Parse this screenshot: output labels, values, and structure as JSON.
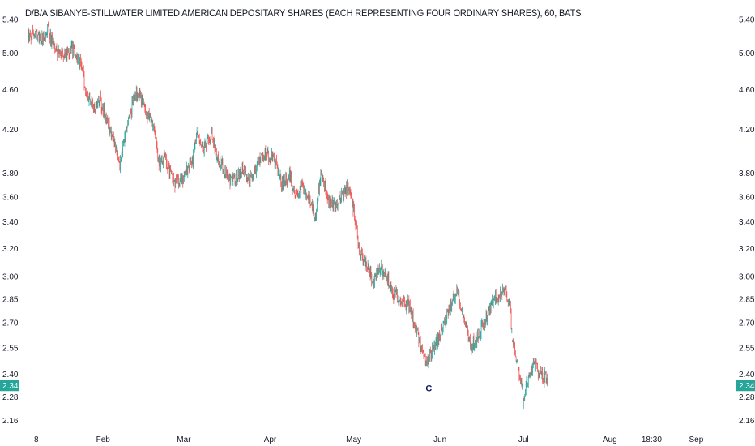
{
  "title": "D/B/A SIBANYE-STILLWATER LIMITED AMERICAN DEPOSITARY SHARES (EACH REPRESENTING FOUR ORDINARY SHARES), 60, BATS",
  "colors": {
    "up": "#26a69a",
    "down": "#ef5350",
    "last_price_tag": "#26a69a",
    "marker_text": "#131760",
    "axis_text": "#131722"
  },
  "chart_data": {
    "type": "candlestick",
    "title": "D/B/A SIBANYE-STILLWATER LIMITED AMERICAN DEPOSITARY SHARES (EACH REPRESENTING FOUR ORDINARY SHARES), 60, BATS",
    "y_scale": "log",
    "ylim": [
      2.13,
      5.48
    ],
    "y_ticks": [
      "5.40",
      "5.00",
      "4.60",
      "4.20",
      "3.80",
      "3.60",
      "3.40",
      "3.20",
      "3.00",
      "2.85",
      "2.70",
      "2.55",
      "2.40",
      "2.28",
      "2.16"
    ],
    "x_ticks": [
      {
        "date": "2024-01-08",
        "label": "8"
      },
      {
        "date": "2024-02-01",
        "label": "Feb"
      },
      {
        "date": "2024-03-01",
        "label": "Mar"
      },
      {
        "date": "2024-04-01",
        "label": "Apr"
      },
      {
        "date": "2024-05-01",
        "label": "May"
      },
      {
        "date": "2024-06-01",
        "label": "Jun"
      },
      {
        "date": "2024-07-01",
        "label": "Jul"
      },
      {
        "date": "2024-08-01",
        "label": "Aug"
      },
      {
        "date": "2024-08-16",
        "label": "18:30"
      },
      {
        "date": "2024-09-01",
        "label": "Sep"
      }
    ],
    "xlim": [
      "2024-01-04",
      "2024-09-07"
    ],
    "last_price": "2.34",
    "marker": {
      "label": "C",
      "date": "2024-05-28",
      "price": 2.37
    },
    "price_path": [
      {
        "date": "2024-01-05",
        "close": 5.2
      },
      {
        "date": "2024-01-08",
        "close": 5.22
      },
      {
        "date": "2024-01-10",
        "close": 5.15
      },
      {
        "date": "2024-01-12",
        "close": 5.28
      },
      {
        "date": "2024-01-15",
        "close": 5.02
      },
      {
        "date": "2024-01-18",
        "close": 4.95
      },
      {
        "date": "2024-01-21",
        "close": 5.04
      },
      {
        "date": "2024-01-24",
        "close": 4.88
      },
      {
        "date": "2024-01-26",
        "close": 4.55
      },
      {
        "date": "2024-01-29",
        "close": 4.4
      },
      {
        "date": "2024-01-31",
        "close": 4.5
      },
      {
        "date": "2024-02-02",
        "close": 4.3
      },
      {
        "date": "2024-02-05",
        "close": 4.1
      },
      {
        "date": "2024-02-07",
        "close": 3.88
      },
      {
        "date": "2024-02-09",
        "close": 4.15
      },
      {
        "date": "2024-02-12",
        "close": 4.5
      },
      {
        "date": "2024-02-14",
        "close": 4.58
      },
      {
        "date": "2024-02-16",
        "close": 4.4
      },
      {
        "date": "2024-02-19",
        "close": 4.25
      },
      {
        "date": "2024-02-21",
        "close": 3.88
      },
      {
        "date": "2024-02-23",
        "close": 3.95
      },
      {
        "date": "2024-02-26",
        "close": 3.75
      },
      {
        "date": "2024-02-28",
        "close": 3.7
      },
      {
        "date": "2024-03-01",
        "close": 3.78
      },
      {
        "date": "2024-03-04",
        "close": 3.9
      },
      {
        "date": "2024-03-06",
        "close": 4.18
      },
      {
        "date": "2024-03-08",
        "close": 4.02
      },
      {
        "date": "2024-03-11",
        "close": 4.15
      },
      {
        "date": "2024-03-13",
        "close": 3.95
      },
      {
        "date": "2024-03-15",
        "close": 3.85
      },
      {
        "date": "2024-03-18",
        "close": 3.72
      },
      {
        "date": "2024-03-20",
        "close": 3.78
      },
      {
        "date": "2024-03-22",
        "close": 3.82
      },
      {
        "date": "2024-03-25",
        "close": 3.75
      },
      {
        "date": "2024-03-27",
        "close": 3.85
      },
      {
        "date": "2024-03-29",
        "close": 3.98
      },
      {
        "date": "2024-04-01",
        "close": 3.95
      },
      {
        "date": "2024-04-03",
        "close": 3.88
      },
      {
        "date": "2024-04-05",
        "close": 3.72
      },
      {
        "date": "2024-04-08",
        "close": 3.78
      },
      {
        "date": "2024-04-10",
        "close": 3.6
      },
      {
        "date": "2024-04-12",
        "close": 3.7
      },
      {
        "date": "2024-04-15",
        "close": 3.62
      },
      {
        "date": "2024-04-17",
        "close": 3.42
      },
      {
        "date": "2024-04-19",
        "close": 3.78
      },
      {
        "date": "2024-04-22",
        "close": 3.58
      },
      {
        "date": "2024-04-24",
        "close": 3.52
      },
      {
        "date": "2024-04-26",
        "close": 3.58
      },
      {
        "date": "2024-04-29",
        "close": 3.68
      },
      {
        "date": "2024-05-01",
        "close": 3.5
      },
      {
        "date": "2024-05-03",
        "close": 3.18
      },
      {
        "date": "2024-05-06",
        "close": 3.05
      },
      {
        "date": "2024-05-08",
        "close": 2.95
      },
      {
        "date": "2024-05-10",
        "close": 3.08
      },
      {
        "date": "2024-05-13",
        "close": 3.0
      },
      {
        "date": "2024-05-15",
        "close": 2.88
      },
      {
        "date": "2024-05-18",
        "close": 2.86
      },
      {
        "date": "2024-05-21",
        "close": 2.8
      },
      {
        "date": "2024-05-24",
        "close": 2.62
      },
      {
        "date": "2024-05-27",
        "close": 2.45
      },
      {
        "date": "2024-05-30",
        "close": 2.55
      },
      {
        "date": "2024-06-02",
        "close": 2.68
      },
      {
        "date": "2024-06-05",
        "close": 2.8
      },
      {
        "date": "2024-06-07",
        "close": 2.92
      },
      {
        "date": "2024-06-10",
        "close": 2.7
      },
      {
        "date": "2024-06-12",
        "close": 2.55
      },
      {
        "date": "2024-06-14",
        "close": 2.6
      },
      {
        "date": "2024-06-17",
        "close": 2.7
      },
      {
        "date": "2024-06-19",
        "close": 2.8
      },
      {
        "date": "2024-06-21",
        "close": 2.85
      },
      {
        "date": "2024-06-24",
        "close": 2.9
      },
      {
        "date": "2024-06-26",
        "close": 2.84
      },
      {
        "date": "2024-06-27",
        "close": 2.6
      },
      {
        "date": "2024-06-29",
        "close": 2.45
      },
      {
        "date": "2024-07-01",
        "close": 2.28
      },
      {
        "date": "2024-07-03",
        "close": 2.4
      },
      {
        "date": "2024-07-05",
        "close": 2.46
      },
      {
        "date": "2024-07-07",
        "close": 2.4
      },
      {
        "date": "2024-07-09",
        "close": 2.38
      },
      {
        "date": "2024-07-10",
        "close": 2.34
      }
    ],
    "gaps": [
      "2024-02-19",
      "2024-03-29",
      "2024-04-17",
      "2024-05-03",
      "2024-05-10",
      "2024-06-27",
      "2024-07-01"
    ]
  }
}
